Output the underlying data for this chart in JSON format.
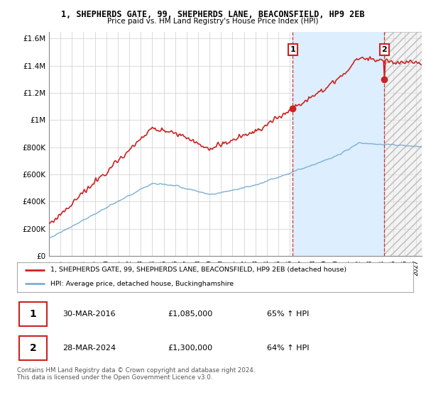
{
  "title1": "1, SHEPHERDS GATE, 99, SHEPHERDS LANE, BEACONSFIELD, HP9 2EB",
  "title2": "Price paid vs. HM Land Registry's House Price Index (HPI)",
  "legend_line1": "1, SHEPHERDS GATE, 99, SHEPHERDS LANE, BEACONSFIELD, HP9 2EB (detached house)",
  "legend_line2": "HPI: Average price, detached house, Buckinghamshire",
  "transaction1_date": "30-MAR-2016",
  "transaction1_price": "£1,085,000",
  "transaction1_hpi": "65% ↑ HPI",
  "transaction2_date": "28-MAR-2024",
  "transaction2_price": "£1,300,000",
  "transaction2_hpi": "64% ↑ HPI",
  "footer": "Contains HM Land Registry data © Crown copyright and database right 2024.\nThis data is licensed under the Open Government Licence v3.0.",
  "hpi_color": "#7bafd4",
  "price_color": "#cc2222",
  "marker1_year": 2016.25,
  "marker1_value": 1085000,
  "marker2_year": 2024.25,
  "marker2_value": 1300000,
  "ylim": [
    0,
    1650000
  ],
  "yticks": [
    0,
    200000,
    400000,
    600000,
    800000,
    1000000,
    1200000,
    1400000,
    1600000
  ],
  "ytick_labels": [
    "£0",
    "£200K",
    "£400K",
    "£600K",
    "£800K",
    "£1M",
    "£1.2M",
    "£1.4M",
    "£1.6M"
  ],
  "xmin": 1995,
  "xmax": 2027.5,
  "background_color": "#ffffff",
  "grid_color": "#cccccc",
  "shade_between_color": "#ddeeff",
  "hatch_color": "#cccccc"
}
